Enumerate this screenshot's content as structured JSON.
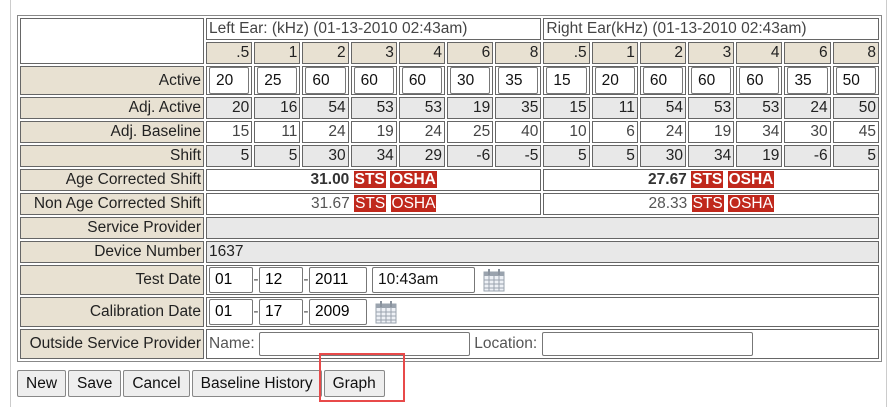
{
  "left_ear_title": "Left Ear: (kHz) (01-13-2010 02:43am)",
  "right_ear_title": "Right Ear(kHz) (01-13-2010 02:43am)",
  "frequencies": [
    ".5",
    "1",
    "2",
    "3",
    "4",
    "6",
    "8"
  ],
  "rows": {
    "active": {
      "label": "Active",
      "left": [
        "20",
        "25",
        "60",
        "60",
        "60",
        "30",
        "35"
      ],
      "right": [
        "15",
        "20",
        "60",
        "60",
        "60",
        "35",
        "50"
      ]
    },
    "adj_active": {
      "label": "Adj. Active",
      "left": [
        "20",
        "16",
        "54",
        "53",
        "53",
        "19",
        "35"
      ],
      "right": [
        "15",
        "11",
        "54",
        "53",
        "53",
        "24",
        "50"
      ]
    },
    "adj_baseline": {
      "label": "Adj. Baseline",
      "left": [
        "15",
        "11",
        "24",
        "19",
        "24",
        "25",
        "40"
      ],
      "right": [
        "10",
        "6",
        "24",
        "19",
        "34",
        "30",
        "45"
      ]
    },
    "shift": {
      "label": "Shift",
      "left": [
        "5",
        "5",
        "30",
        "34",
        "29",
        "-6",
        "-5"
      ],
      "right": [
        "5",
        "5",
        "30",
        "34",
        "19",
        "-6",
        "5"
      ]
    }
  },
  "age_corrected": {
    "label": "Age Corrected Shift",
    "left": "31.00",
    "right": "27.67"
  },
  "non_age_corrected": {
    "label": "Non Age Corrected Shift",
    "left": "31.67",
    "right": "28.33"
  },
  "badges": {
    "sts": "STS",
    "osha": "OSHA",
    "color": "#c0281c"
  },
  "service_provider": {
    "label": "Service Provider",
    "value": ""
  },
  "device_number": {
    "label": "Device Number",
    "value": "1637"
  },
  "test_date": {
    "label": "Test Date",
    "month": "01",
    "day": "12",
    "year": "2011",
    "time": "10:43am"
  },
  "calibration_date": {
    "label": "Calibration Date",
    "month": "01",
    "day": "17",
    "year": "2009"
  },
  "outside_provider": {
    "label": "Outside Service Provider",
    "name_label": "Name:",
    "name_value": "",
    "location_label": "Location:",
    "location_value": ""
  },
  "date_separator": "-",
  "buttons": {
    "new": "New",
    "save": "Save",
    "cancel": "Cancel",
    "baseline_history": "Baseline History",
    "graph": "Graph"
  },
  "highlight_color": "#e84a4a"
}
